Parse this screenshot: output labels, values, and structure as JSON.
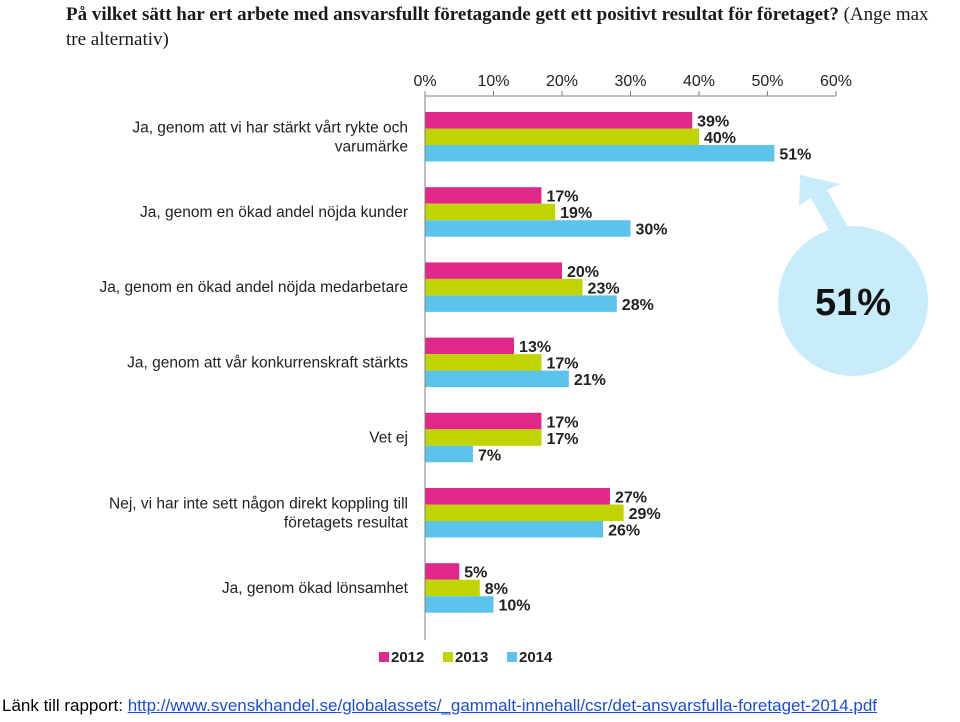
{
  "title": {
    "bold": "På vilket sätt har ert arbete med ansvarsfullt företagande gett ett positivt resultat för företaget?",
    "normal": "(Ange max tre alternativ)"
  },
  "chart_data": {
    "type": "bar",
    "orientation": "horizontal",
    "xlim": [
      0,
      60
    ],
    "tick_values": [
      0,
      10,
      20,
      30,
      40,
      50,
      60
    ],
    "tick_labels": [
      "0%",
      "10%",
      "20%",
      "30%",
      "40%",
      "50%",
      "60%"
    ],
    "categories": [
      "Ja, genom att vi har stärkt vårt rykte och varumärke",
      "Ja, genom en ökad andel nöjda kunder",
      "Ja, genom en ökad andel nöjda medarbetare",
      "Ja, genom att vår konkurrenskraft stärkts",
      "Vet ej",
      "Nej, vi har inte sett någon direkt koppling till företagets resultat",
      "Ja, genom ökad lönsamhet"
    ],
    "category_lines": [
      [
        "Ja, genom att vi har stärkt vårt rykte och",
        "varumärke"
      ],
      [
        "Ja, genom en ökad andel nöjda kunder"
      ],
      [
        "Ja, genom en ökad andel nöjda medarbetare"
      ],
      [
        "Ja, genom att vår konkurrenskraft stärkts"
      ],
      [
        "Vet ej"
      ],
      [
        "Nej, vi har inte sett någon direkt koppling till",
        "företagets resultat"
      ],
      [
        "Ja, genom ökad lönsamhet"
      ]
    ],
    "series": [
      {
        "name": "2012",
        "color": "#e0288a",
        "values": [
          39,
          17,
          20,
          13,
          17,
          27,
          5
        ]
      },
      {
        "name": "2013",
        "color": "#bfd400",
        "values": [
          40,
          19,
          23,
          17,
          17,
          29,
          8
        ]
      },
      {
        "name": "2014",
        "color": "#5cc4ec",
        "values": [
          51,
          30,
          28,
          21,
          7,
          26,
          10
        ]
      }
    ],
    "value_suffix": "%",
    "legend_position": "bottom",
    "callout": {
      "label": "51%",
      "color": "#c8ecf9"
    }
  },
  "footer": {
    "prefix": "Länk till rapport:",
    "link": "http://www.svenskhandel.se/globalassets/_gammalt-innehall/csr/det-ansvarsfulla-foretaget-2014.pdf"
  }
}
